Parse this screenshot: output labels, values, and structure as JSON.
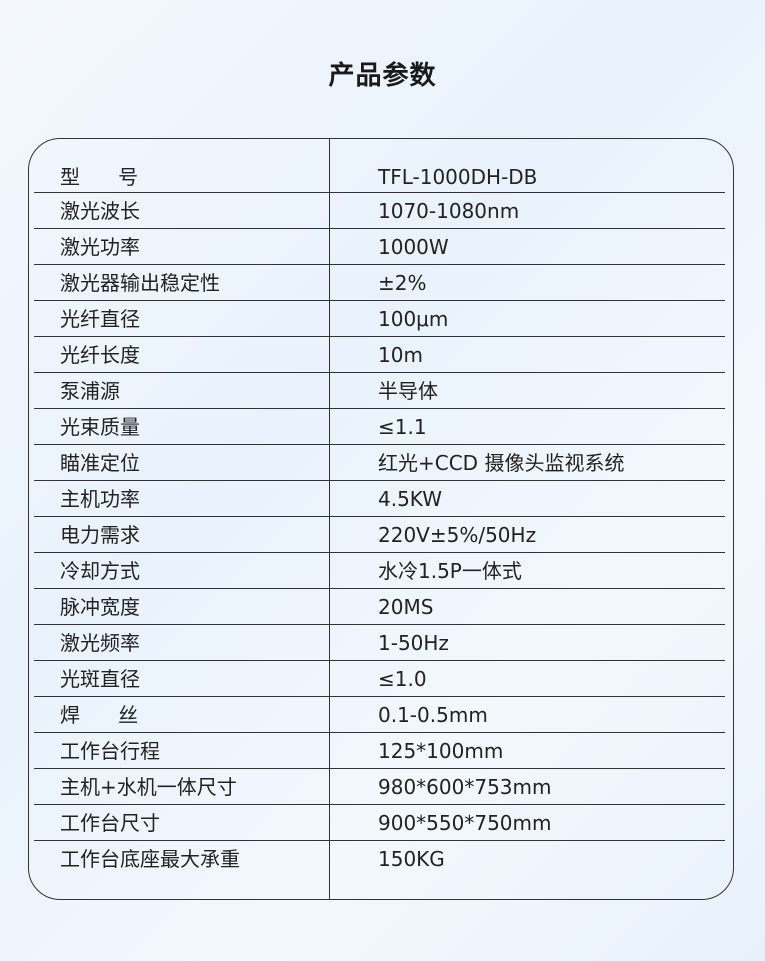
{
  "title": "产品参数",
  "table": {
    "rows": [
      {
        "key": "型      号",
        "value": "TFL-1000DH-DB"
      },
      {
        "key": "激光波长",
        "value": "1070-1080nm"
      },
      {
        "key": "激光功率",
        "value": "1000W"
      },
      {
        "key": "激光器输出稳定性",
        "value": "±2%"
      },
      {
        "key": "光纤直径",
        "value": "100μm"
      },
      {
        "key": "光纤长度",
        "value": "10m"
      },
      {
        "key": "泵浦源",
        "value": "半导体"
      },
      {
        "key": "光束质量",
        "value": "≤1.1"
      },
      {
        "key": "瞄准定位",
        "value": "红光+CCD 摄像头监视系统"
      },
      {
        "key": "主机功率",
        "value": "4.5KW"
      },
      {
        "key": "电力需求",
        "value": "220V±5%/50Hz"
      },
      {
        "key": "冷却方式",
        "value": "水冷1.5P一体式"
      },
      {
        "key": "脉冲宽度",
        "value": "20MS"
      },
      {
        "key": "激光频率",
        "value": "1-50Hz"
      },
      {
        "key": "光斑直径",
        "value": "≤1.0"
      },
      {
        "key": "焊      丝",
        "value": "0.1-0.5mm"
      },
      {
        "key": "工作台行程",
        "value": "125*100mm"
      },
      {
        "key": "主机+水机一体尺寸",
        "value": "980*600*753mm"
      },
      {
        "key": "工作台尺寸",
        "value": "900*550*750mm"
      },
      {
        "key": "工作台底座最大承重",
        "value": "150KG"
      }
    ]
  }
}
